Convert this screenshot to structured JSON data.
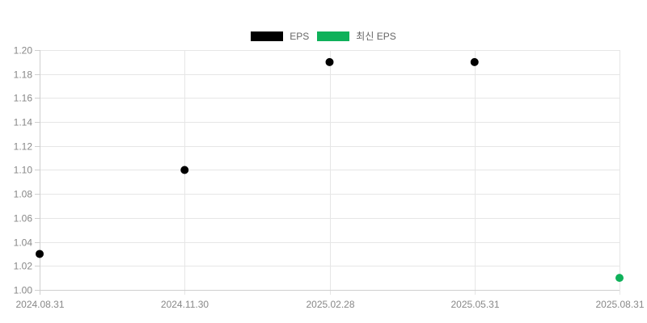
{
  "chart_data": {
    "type": "scatter",
    "title": "",
    "categories": [
      "2024.08.31",
      "2024.11.30",
      "2025.02.28",
      "2025.05.31",
      "2025.08.31"
    ],
    "series": [
      {
        "name": "EPS",
        "color": "#000000",
        "points": [
          [
            0,
            1.03
          ],
          [
            1,
            1.1
          ],
          [
            2,
            1.19
          ],
          [
            3,
            1.19
          ]
        ]
      },
      {
        "name": "최신 EPS",
        "color": "#0fb15a",
        "points": [
          [
            4,
            1.01
          ]
        ]
      }
    ],
    "ylim": [
      1.0,
      1.2
    ],
    "ytick_step": 0.02,
    "y_decimals": 2,
    "grid": true,
    "legend_position": "top-center",
    "marker_radius": 5
  },
  "legend": {
    "items": [
      {
        "label": "EPS",
        "color": "#000000"
      },
      {
        "label": "최신 EPS",
        "color": "#0fb15a"
      }
    ]
  },
  "colors": {
    "background": "#ffffff",
    "grid": "#e6e6e6",
    "axis": "#cfcfcf",
    "axis_label": "#888888",
    "legend_label": "#666666"
  }
}
